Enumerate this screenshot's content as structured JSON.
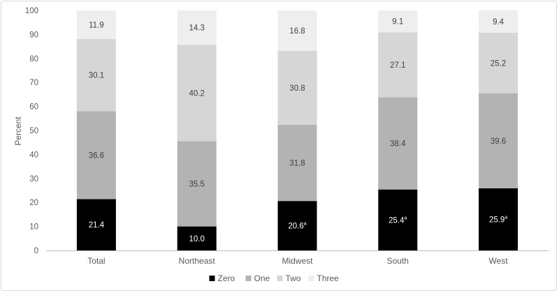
{
  "chart_data": {
    "type": "bar",
    "stacked": true,
    "ylabel": "Percent",
    "ylim": [
      0,
      100
    ],
    "yticks": [
      0,
      10,
      20,
      30,
      40,
      50,
      60,
      70,
      80,
      90,
      100
    ],
    "grid": false,
    "legend_position": "bottom",
    "categories": [
      "Total",
      "Northeast",
      "Midwest",
      "South",
      "West"
    ],
    "series": [
      {
        "name": "Zero",
        "color": "#000000",
        "values": [
          21.4,
          10.0,
          20.6,
          25.4,
          25.9
        ],
        "labels": [
          "21.4",
          "10.0",
          "20.6",
          "25.4",
          "25.9"
        ],
        "superscripts": [
          "",
          "",
          "a",
          "a",
          "a"
        ]
      },
      {
        "name": "One",
        "color": "#b3b3b3",
        "values": [
          36.6,
          35.5,
          31.8,
          38.4,
          39.6
        ],
        "labels": [
          "36.6",
          "35.5",
          "31.8",
          "38.4",
          "39.6"
        ],
        "superscripts": [
          "",
          "",
          "",
          "",
          ""
        ]
      },
      {
        "name": "Two",
        "color": "#d6d6d6",
        "values": [
          30.1,
          40.2,
          30.8,
          27.1,
          25.2
        ],
        "labels": [
          "30.1",
          "40.2",
          "30.8",
          "27.1",
          "25.2"
        ],
        "superscripts": [
          "",
          "",
          "",
          "",
          ""
        ]
      },
      {
        "name": "Three",
        "color": "#eeeeee",
        "values": [
          11.9,
          14.3,
          16.8,
          9.1,
          9.4
        ],
        "labels": [
          "11.9",
          "14.3",
          "16.8",
          "9.1",
          "9.4"
        ],
        "superscripts": [
          "",
          "",
          "",
          "",
          ""
        ]
      }
    ],
    "label_colors": {
      "dark": "#ffffff",
      "light": "#404040"
    },
    "axis_color": "#bfbfbf"
  }
}
